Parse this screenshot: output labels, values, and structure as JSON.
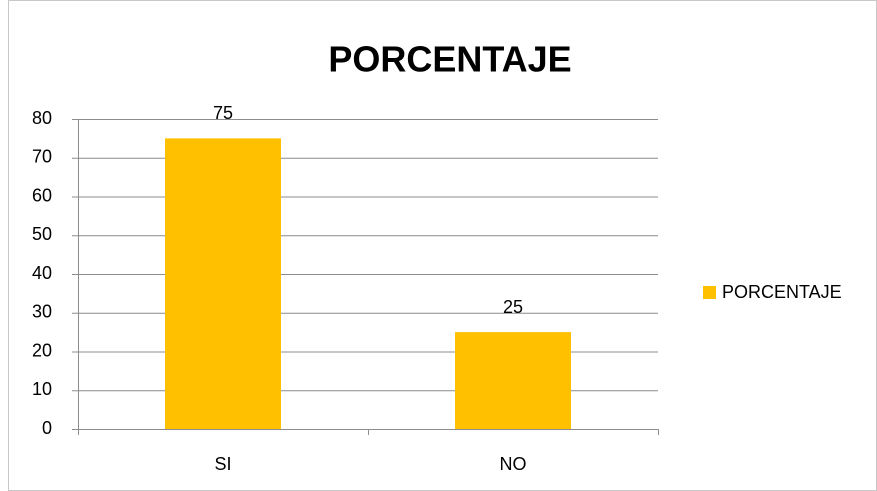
{
  "chart_data": {
    "type": "bar",
    "title": "PORCENTAJE",
    "categories": [
      "SI",
      "NO"
    ],
    "series": [
      {
        "name": "PORCENTAJE",
        "color": "#ffc000",
        "values": [
          75,
          25
        ]
      }
    ],
    "ylim": [
      0,
      80
    ],
    "yticks": [
      0,
      10,
      20,
      30,
      40,
      50,
      60,
      70,
      80
    ],
    "grid": true,
    "legend": "right",
    "data_labels": true
  }
}
